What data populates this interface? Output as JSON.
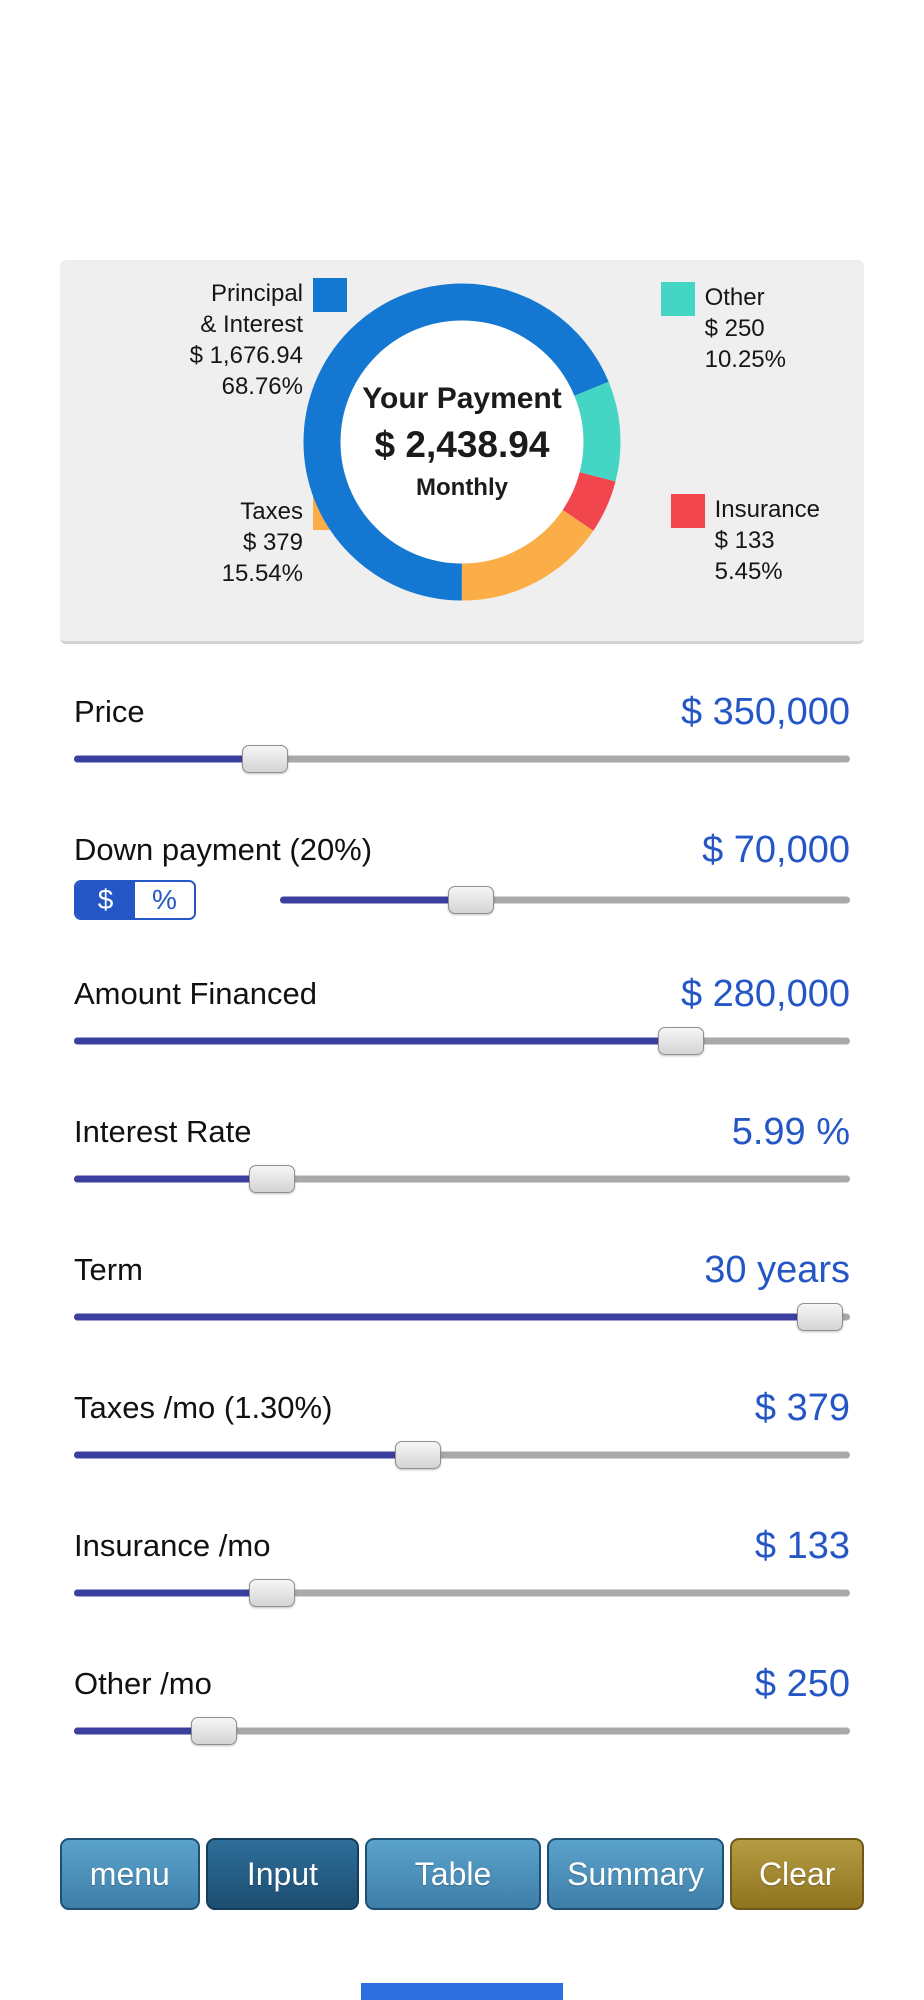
{
  "colors": {
    "accent_blue": "#2457c5",
    "slider_fill": "#3b3f9e",
    "bottom_bar": "#2e6fe0",
    "panel_background": "#efefef"
  },
  "payment_chart": {
    "type": "donut",
    "center": {
      "title": "Your Payment",
      "amount": "$ 2,438.94",
      "period": "Monthly"
    },
    "start_angle": "bottom",
    "direction": "clockwise",
    "segments": [
      {
        "id": "principal-interest",
        "label_line1": "Principal",
        "label_line2": "& Interest",
        "amount": "$ 1,676.94",
        "pct": 68.76,
        "pct_label": "68.76%",
        "color": "#1478d2"
      },
      {
        "id": "other",
        "label": "Other",
        "amount": "$ 250",
        "pct": 10.25,
        "pct_label": "10.25%",
        "color": "#45d5c4"
      },
      {
        "id": "insurance",
        "label": "Insurance",
        "amount": "$ 133",
        "pct": 5.45,
        "pct_label": "5.45%",
        "color": "#f2464f"
      },
      {
        "id": "taxes",
        "label": "Taxes",
        "amount": "$ 379",
        "pct": 15.54,
        "pct_label": "15.54%",
        "color": "#fbae47"
      }
    ]
  },
  "sliders": [
    {
      "id": "price",
      "label": "Price",
      "value": "$ 350,000",
      "fraction": 0.23
    },
    {
      "id": "down-payment",
      "label": "Down payment (20%)",
      "value": "$ 70,000",
      "fraction": 0.32,
      "toggle": {
        "dollar": "$",
        "percent": "%",
        "selected": "dollar"
      }
    },
    {
      "id": "amount-financed",
      "label": "Amount Financed",
      "value": "$ 280,000",
      "fraction": 0.8
    },
    {
      "id": "interest-rate",
      "label": "Interest Rate",
      "value": "5.99 %",
      "fraction": 0.24
    },
    {
      "id": "term",
      "label": "Term",
      "value": "30 years",
      "fraction": 0.99
    },
    {
      "id": "taxes-mo",
      "label": "Taxes /mo (1.30%)",
      "value": "$ 379",
      "fraction": 0.44
    },
    {
      "id": "insurance-mo",
      "label": "Insurance /mo",
      "value": "$ 133",
      "fraction": 0.24
    },
    {
      "id": "other-mo",
      "label": "Other /mo",
      "value": "$ 250",
      "fraction": 0.16
    }
  ],
  "toolbar": {
    "menu_label": "menu",
    "input_label": "Input",
    "table_label": "Table",
    "summary_label": "Summary",
    "clear_label": "Clear"
  }
}
